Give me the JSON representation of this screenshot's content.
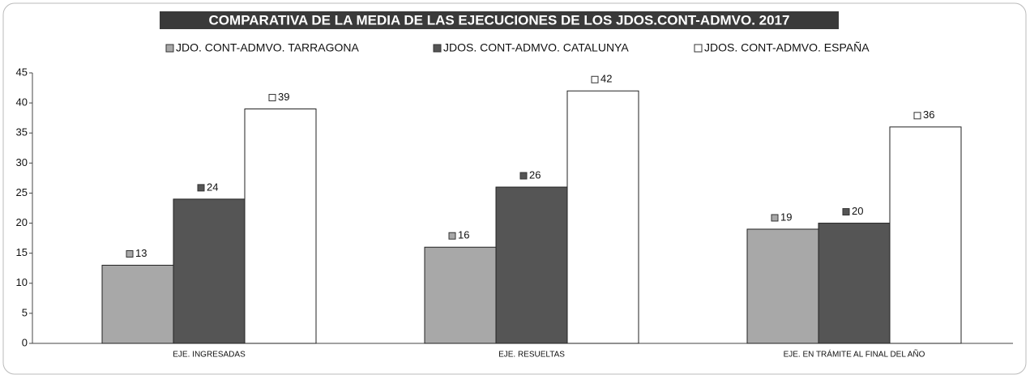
{
  "chart_data": {
    "type": "bar",
    "title": "COMPARATIVA DE LA MEDIA DE LAS EJECUCIONES  DE LOS JDOS.CONT-ADMVO.  2017",
    "categories": [
      "EJE. INGRESADAS",
      "EJE. RESUELTAS",
      "EJE. EN TRÁMITE AL FINAL DEL AÑO"
    ],
    "series": [
      {
        "name": "JDO. CONT-ADMVO. TARRAGONA",
        "color": "#a8a8a8",
        "values": [
          13,
          16,
          19
        ]
      },
      {
        "name": "JDOS. CONT-ADMVO. CATALUNYA",
        "color": "#555555",
        "values": [
          24,
          26,
          20
        ]
      },
      {
        "name": "JDOS. CONT-ADMVO. ESPAÑA",
        "color": "#ffffff",
        "values": [
          39,
          42,
          36
        ]
      }
    ],
    "ylim": [
      0,
      45
    ],
    "yticks": [
      0,
      5,
      10,
      15,
      20,
      25,
      30,
      35,
      40,
      45
    ],
    "legend": "top"
  }
}
